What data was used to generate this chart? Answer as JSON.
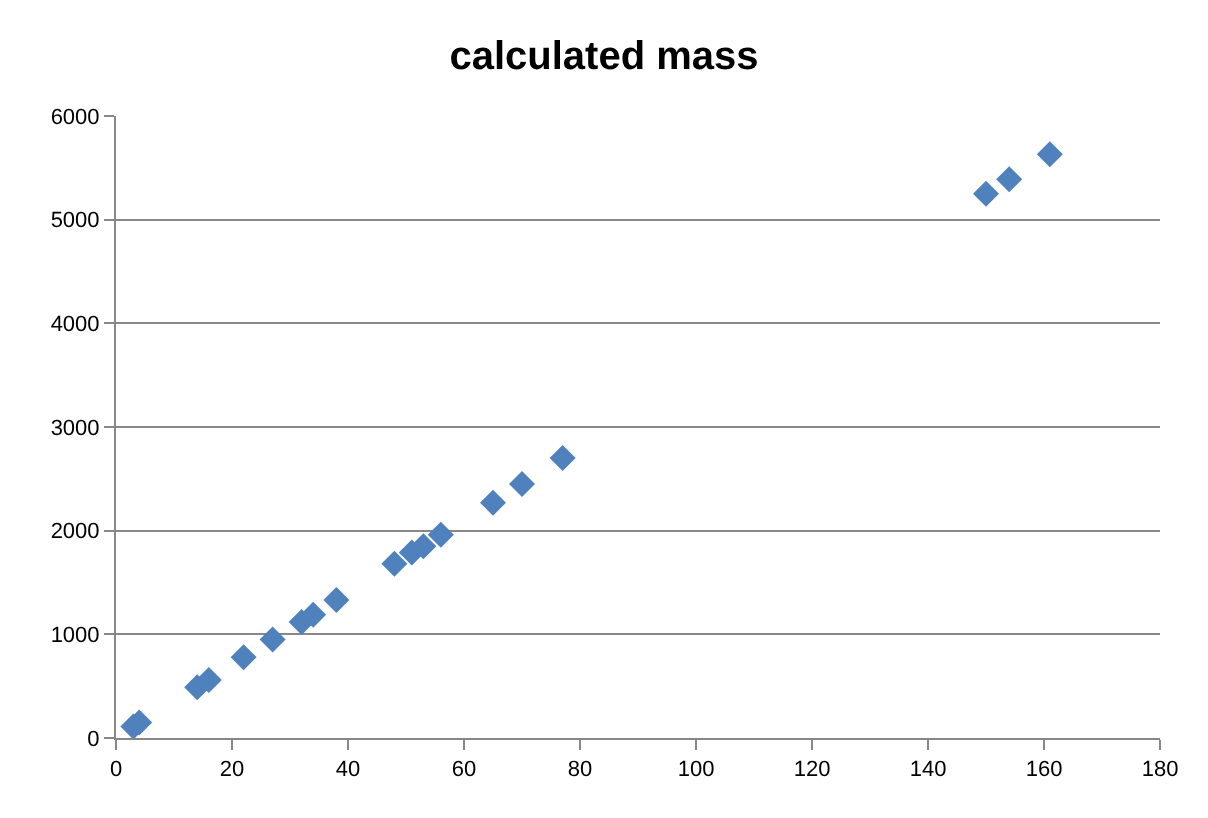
{
  "chart_data": {
    "type": "scatter",
    "title": "calculated mass",
    "marker": "diamond",
    "grid": "y",
    "x": [
      3,
      4,
      14,
      16,
      22,
      27,
      32,
      34,
      38,
      48,
      51,
      53,
      56,
      65,
      70,
      77,
      150,
      154,
      161
    ],
    "series": [
      {
        "color": "#4f81bd",
        "values": [
          110,
          150,
          490,
          560,
          780,
          950,
          1120,
          1190,
          1330,
          1680,
          1790,
          1850,
          1960,
          2270,
          2450,
          2700,
          5250,
          5390,
          5630
        ]
      }
    ],
    "xlim": [
      0,
      180
    ],
    "xticks": [
      0,
      20,
      40,
      60,
      80,
      100,
      120,
      140,
      160,
      180
    ],
    "ylim": [
      0,
      6000
    ],
    "yticks": [
      0,
      1000,
      2000,
      3000,
      4000,
      5000,
      6000
    ]
  }
}
